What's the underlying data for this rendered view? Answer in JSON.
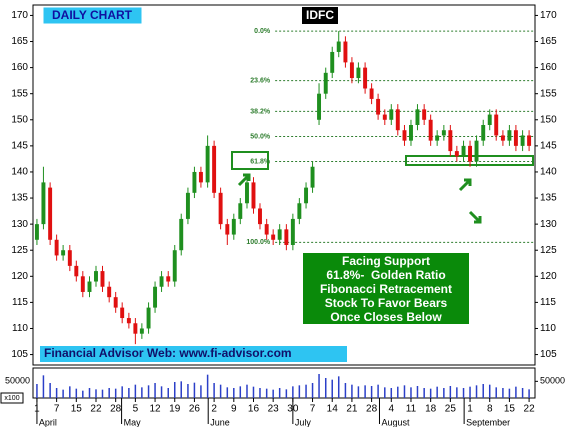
{
  "chart_data": {
    "type": "candlestick",
    "title": "IDFC",
    "subtitle": "DAILY CHART",
    "x": [
      0,
      0.33,
      0.67,
      1,
      1.33,
      1.67,
      2,
      2.33,
      2.67,
      3,
      3.33,
      3.67,
      4,
      4.33,
      4.67,
      5,
      5.33,
      5.67,
      6,
      6.33,
      6.67,
      7,
      7.33,
      7.67,
      8,
      8.33,
      8.67,
      9,
      9.33,
      9.67,
      10,
      10.33,
      10.67,
      11,
      11.33,
      11.67,
      12,
      12.33,
      12.67,
      13,
      13.33,
      13.67,
      14,
      14.33,
      14.67,
      15,
      15.33,
      15.67,
      16,
      16.33,
      16.67,
      17,
      17.33,
      17.67,
      18,
      18.33,
      18.67,
      19,
      19.33,
      19.67,
      20,
      20.33,
      20.67,
      21,
      21.33,
      21.67,
      22,
      22.33,
      22.67,
      23,
      23.33,
      23.67,
      24,
      24.33,
      24.67,
      25
    ],
    "open": [
      127,
      130,
      137,
      127,
      124,
      125,
      122,
      120,
      117,
      119,
      121,
      118,
      116,
      114,
      112,
      111,
      109,
      110,
      114,
      118,
      120,
      119,
      125,
      131,
      136,
      140,
      138,
      145,
      136,
      130,
      128,
      131,
      134,
      138,
      133,
      130,
      128,
      127,
      129,
      126,
      131,
      134,
      137,
      150,
      155,
      159,
      163,
      165,
      161,
      158,
      160,
      156,
      154,
      151,
      150,
      152,
      148,
      146,
      149,
      152,
      150,
      146,
      147,
      148,
      144,
      143,
      145,
      142,
      146,
      149,
      151,
      147,
      146,
      148,
      145,
      147
    ],
    "high": [
      131,
      141,
      138,
      128,
      126,
      126,
      123,
      121,
      120,
      122,
      122,
      119,
      117,
      115,
      113,
      112,
      111,
      115,
      119,
      121,
      121,
      126,
      132,
      137,
      141,
      141,
      147,
      146,
      137,
      131,
      132,
      135,
      139,
      139,
      134,
      131,
      129,
      130,
      130,
      132,
      135,
      138,
      142,
      157,
      160,
      164,
      167,
      166,
      162,
      161,
      161,
      157,
      155,
      152,
      153,
      153,
      149,
      150,
      153,
      153,
      151,
      148,
      149,
      149,
      145,
      146,
      146,
      147,
      150,
      152,
      152,
      148,
      149,
      149,
      148,
      148
    ],
    "low": [
      126,
      129,
      126,
      123,
      123,
      121,
      119,
      116,
      116,
      118,
      117,
      115,
      113,
      111,
      110,
      107,
      108,
      109,
      113,
      117,
      118,
      118,
      124,
      130,
      135,
      137,
      137,
      135,
      129,
      126,
      127,
      130,
      133,
      132,
      129,
      127,
      126,
      126,
      125,
      125,
      130,
      133,
      136,
      149,
      154,
      158,
      162,
      160,
      157,
      157,
      155,
      153,
      150,
      149,
      149,
      147,
      145,
      145,
      148,
      149,
      145,
      145,
      146,
      143,
      142,
      142,
      141,
      141,
      145,
      148,
      146,
      145,
      145,
      144,
      144,
      144
    ],
    "close": [
      130,
      138,
      127,
      124,
      125,
      122,
      120,
      117,
      119,
      121,
      118,
      116,
      114,
      112,
      111,
      109,
      110,
      114,
      118,
      120,
      119,
      125,
      131,
      136,
      140,
      138,
      145,
      136,
      130,
      128,
      131,
      134,
      138,
      133,
      130,
      128,
      127,
      129,
      126,
      131,
      134,
      137,
      141,
      155,
      159,
      163,
      165,
      161,
      158,
      160,
      156,
      154,
      151,
      150,
      152,
      148,
      146,
      149,
      152,
      150,
      146,
      147,
      148,
      144,
      143,
      145,
      142,
      146,
      149,
      151,
      147,
      146,
      148,
      145,
      147,
      145
    ],
    "volume": [
      42000,
      68000,
      45000,
      30000,
      25000,
      35000,
      28000,
      22000,
      30000,
      26000,
      25000,
      30000,
      28000,
      35000,
      30000,
      40000,
      32000,
      38000,
      45000,
      35000,
      30000,
      48000,
      50000,
      42000,
      46000,
      38000,
      70000,
      45000,
      40000,
      32000,
      30000,
      35000,
      40000,
      34000,
      30000,
      28000,
      25000,
      30000,
      26000,
      35000,
      38000,
      40000,
      45000,
      72000,
      60000,
      55000,
      65000,
      45000,
      40000,
      35000,
      38000,
      36000,
      40000,
      32000,
      30000,
      34000,
      38000,
      32000,
      36000,
      30000,
      28000,
      34000,
      30000,
      36000,
      32000,
      30000,
      34000,
      38000,
      42000,
      40000,
      32000,
      30000,
      28000,
      34000,
      30000,
      26000
    ],
    "up_color": "#1f8f1f",
    "down_color": "#e01010",
    "volume_color": "#2b3fc8",
    "xlim": [
      -0.2,
      25.3
    ],
    "xticks": [
      {
        "value": 0,
        "label": "1"
      },
      {
        "value": 1,
        "label": "7"
      },
      {
        "value": 2,
        "label": "15"
      },
      {
        "value": 3,
        "label": "22"
      },
      {
        "value": 4,
        "label": "28"
      },
      {
        "value": 5,
        "label": "5"
      },
      {
        "value": 6,
        "label": "12"
      },
      {
        "value": 7,
        "label": "19"
      },
      {
        "value": 8,
        "label": "26"
      },
      {
        "value": 9,
        "label": "2"
      },
      {
        "value": 10,
        "label": "9"
      },
      {
        "value": 11,
        "label": "16"
      },
      {
        "value": 12,
        "label": "23"
      },
      {
        "value": 13,
        "label": "30"
      },
      {
        "value": 14,
        "label": "7"
      },
      {
        "value": 15,
        "label": "14"
      },
      {
        "value": 16,
        "label": "21"
      },
      {
        "value": 17,
        "label": "28"
      },
      {
        "value": 18,
        "label": "4"
      },
      {
        "value": 19,
        "label": "11"
      },
      {
        "value": 20,
        "label": "18"
      },
      {
        "value": 21,
        "label": "25"
      },
      {
        "value": 22,
        "label": "1"
      },
      {
        "value": 23,
        "label": "8"
      },
      {
        "value": 24,
        "label": "15"
      },
      {
        "value": 25,
        "label": "22"
      }
    ],
    "months": [
      {
        "value": 0,
        "label": "April"
      },
      {
        "value": 4.3,
        "label": "May"
      },
      {
        "value": 8.7,
        "label": "June"
      },
      {
        "value": 13,
        "label": "July"
      },
      {
        "value": 17.4,
        "label": "August"
      },
      {
        "value": 21.7,
        "label": "September"
      }
    ],
    "ylim": [
      103,
      172
    ],
    "yticks": [
      105,
      110,
      115,
      120,
      125,
      130,
      135,
      140,
      145,
      150,
      155,
      160,
      165,
      170
    ],
    "volume_ylim": [
      0,
      90000
    ],
    "volume_yticks": [
      50000
    ],
    "volume_unit": "x100",
    "fib_start": 12.1,
    "fib_levels": [
      {
        "label": "0.0%",
        "value": 167
      },
      {
        "label": "23.6%",
        "value": 157.5
      },
      {
        "label": "38.2%",
        "value": 151.6
      },
      {
        "label": "50.0%",
        "value": 146.8
      },
      {
        "label": "61.8%",
        "value": 142
      },
      {
        "label": "100.0%",
        "value": 126.5
      }
    ],
    "fib_color": "#2e7d2e",
    "note_lines": [
      "Facing Support",
      "61.8%-  Golden Ratio",
      "Fibonacci Retracement",
      "Stock To Favor Bears",
      "Once Closes Below"
    ],
    "footer": "Financial Advisor Web: www.fi-advisor.com"
  }
}
